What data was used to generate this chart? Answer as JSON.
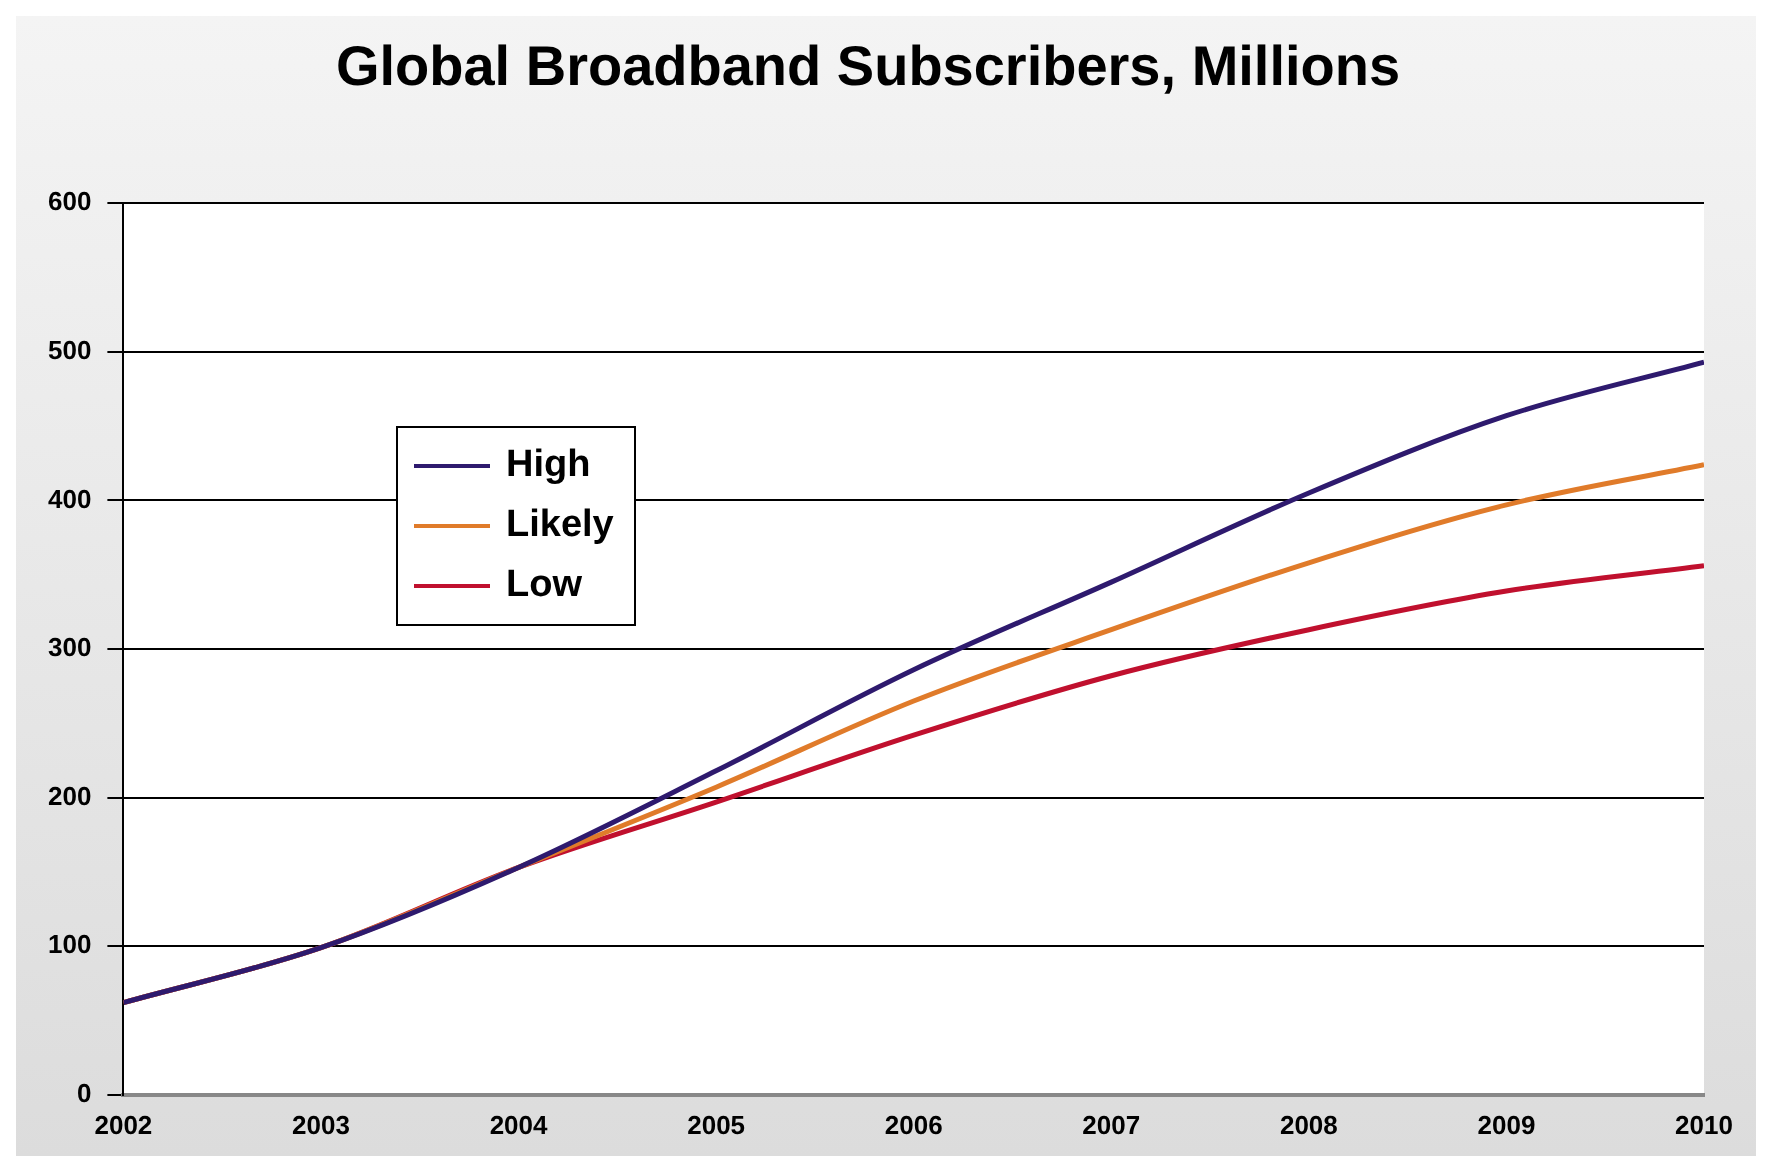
{
  "chart_data": {
    "type": "line",
    "title": "Global Broadband Subscribers, Millions",
    "x": [
      2002,
      2003,
      2004,
      2005,
      2006,
      2007,
      2008,
      2009,
      2010
    ],
    "series": [
      {
        "name": "High",
        "color": "#2e1a6e",
        "values": [
          62,
          99,
          153,
          218,
          286,
          345,
          405,
          457,
          493
        ]
      },
      {
        "name": "Likely",
        "color": "#e07b2a",
        "values": [
          62,
          99,
          153,
          207,
          265,
          313,
          358,
          397,
          424
        ]
      },
      {
        "name": "Low",
        "color": "#c0102e",
        "values": [
          62,
          99,
          153,
          197,
          242,
          282,
          313,
          339,
          356
        ]
      }
    ],
    "xlim": [
      2002,
      2010
    ],
    "xticks": [
      2002,
      2003,
      2004,
      2005,
      2006,
      2007,
      2008,
      2009,
      2010
    ],
    "ylim": [
      0,
      600
    ],
    "yticks": [
      0,
      100,
      200,
      300,
      400,
      500,
      600
    ],
    "grid": "y",
    "legend": "top left",
    "marker": "none",
    "line_style": "solid"
  }
}
